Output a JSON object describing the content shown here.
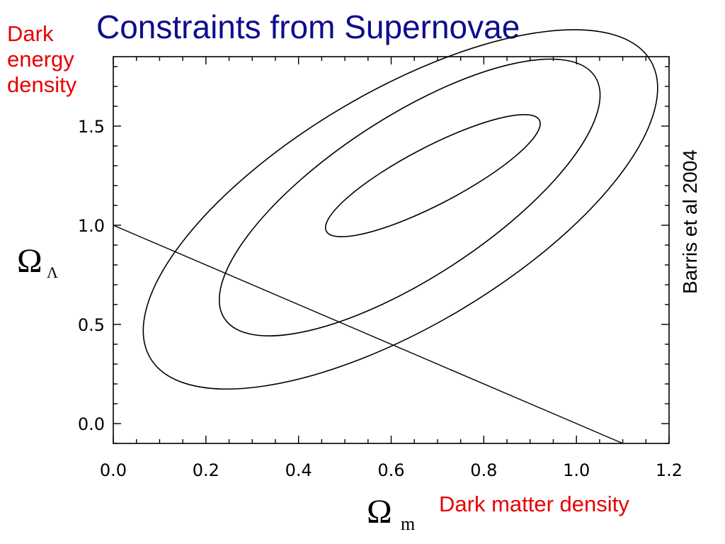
{
  "slide": {
    "title": "Constraints from Supernovae",
    "y_description": [
      "Dark",
      "energy",
      "density"
    ],
    "x_description": "Dark matter density",
    "citation": "Barris et al 2004",
    "colors": {
      "title": "#0d0d8c",
      "labels": "#e80000",
      "axes": "#000000"
    }
  },
  "chart_data": {
    "type": "line",
    "xlabel": "Ω",
    "xlabel_sub": "m",
    "ylabel": "Ω",
    "ylabel_sub": "Λ",
    "xlim": [
      0.0,
      1.2
    ],
    "ylim": [
      -0.1,
      1.85
    ],
    "xticks": [
      "0.0",
      "0.2",
      "0.4",
      "0.6",
      "0.8",
      "1.0",
      "1.2"
    ],
    "yticks": [
      "0.0",
      "0.5",
      "1.0",
      "1.5"
    ],
    "grid": false,
    "contours": [
      {
        "level": "inner",
        "center": [
          0.69,
          1.25
        ],
        "semi_major": 0.39,
        "semi_minor": 0.093,
        "points": [
          [
            0.56,
            0.96
          ],
          [
            0.69,
            1.25
          ],
          [
            0.92,
            1.53
          ]
        ]
      },
      {
        "level": "middle",
        "center": [
          0.64,
          1.14
        ],
        "semi_major": 0.58,
        "semi_minor": 0.21,
        "points": [
          [
            0.28,
            0.61
          ],
          [
            0.64,
            1.14
          ],
          [
            1.04,
            1.75
          ]
        ]
      },
      {
        "level": "outer",
        "center": [
          0.62,
          1.08
        ],
        "semi_major": 0.82,
        "semi_minor": 0.33,
        "points": [
          [
            0.08,
            0.32
          ],
          [
            0.62,
            1.08
          ],
          [
            1.16,
            1.83
          ]
        ]
      }
    ],
    "flat_universe_line": {
      "x": [
        0.0,
        1.1
      ],
      "y": [
        1.0,
        -0.1
      ]
    }
  }
}
